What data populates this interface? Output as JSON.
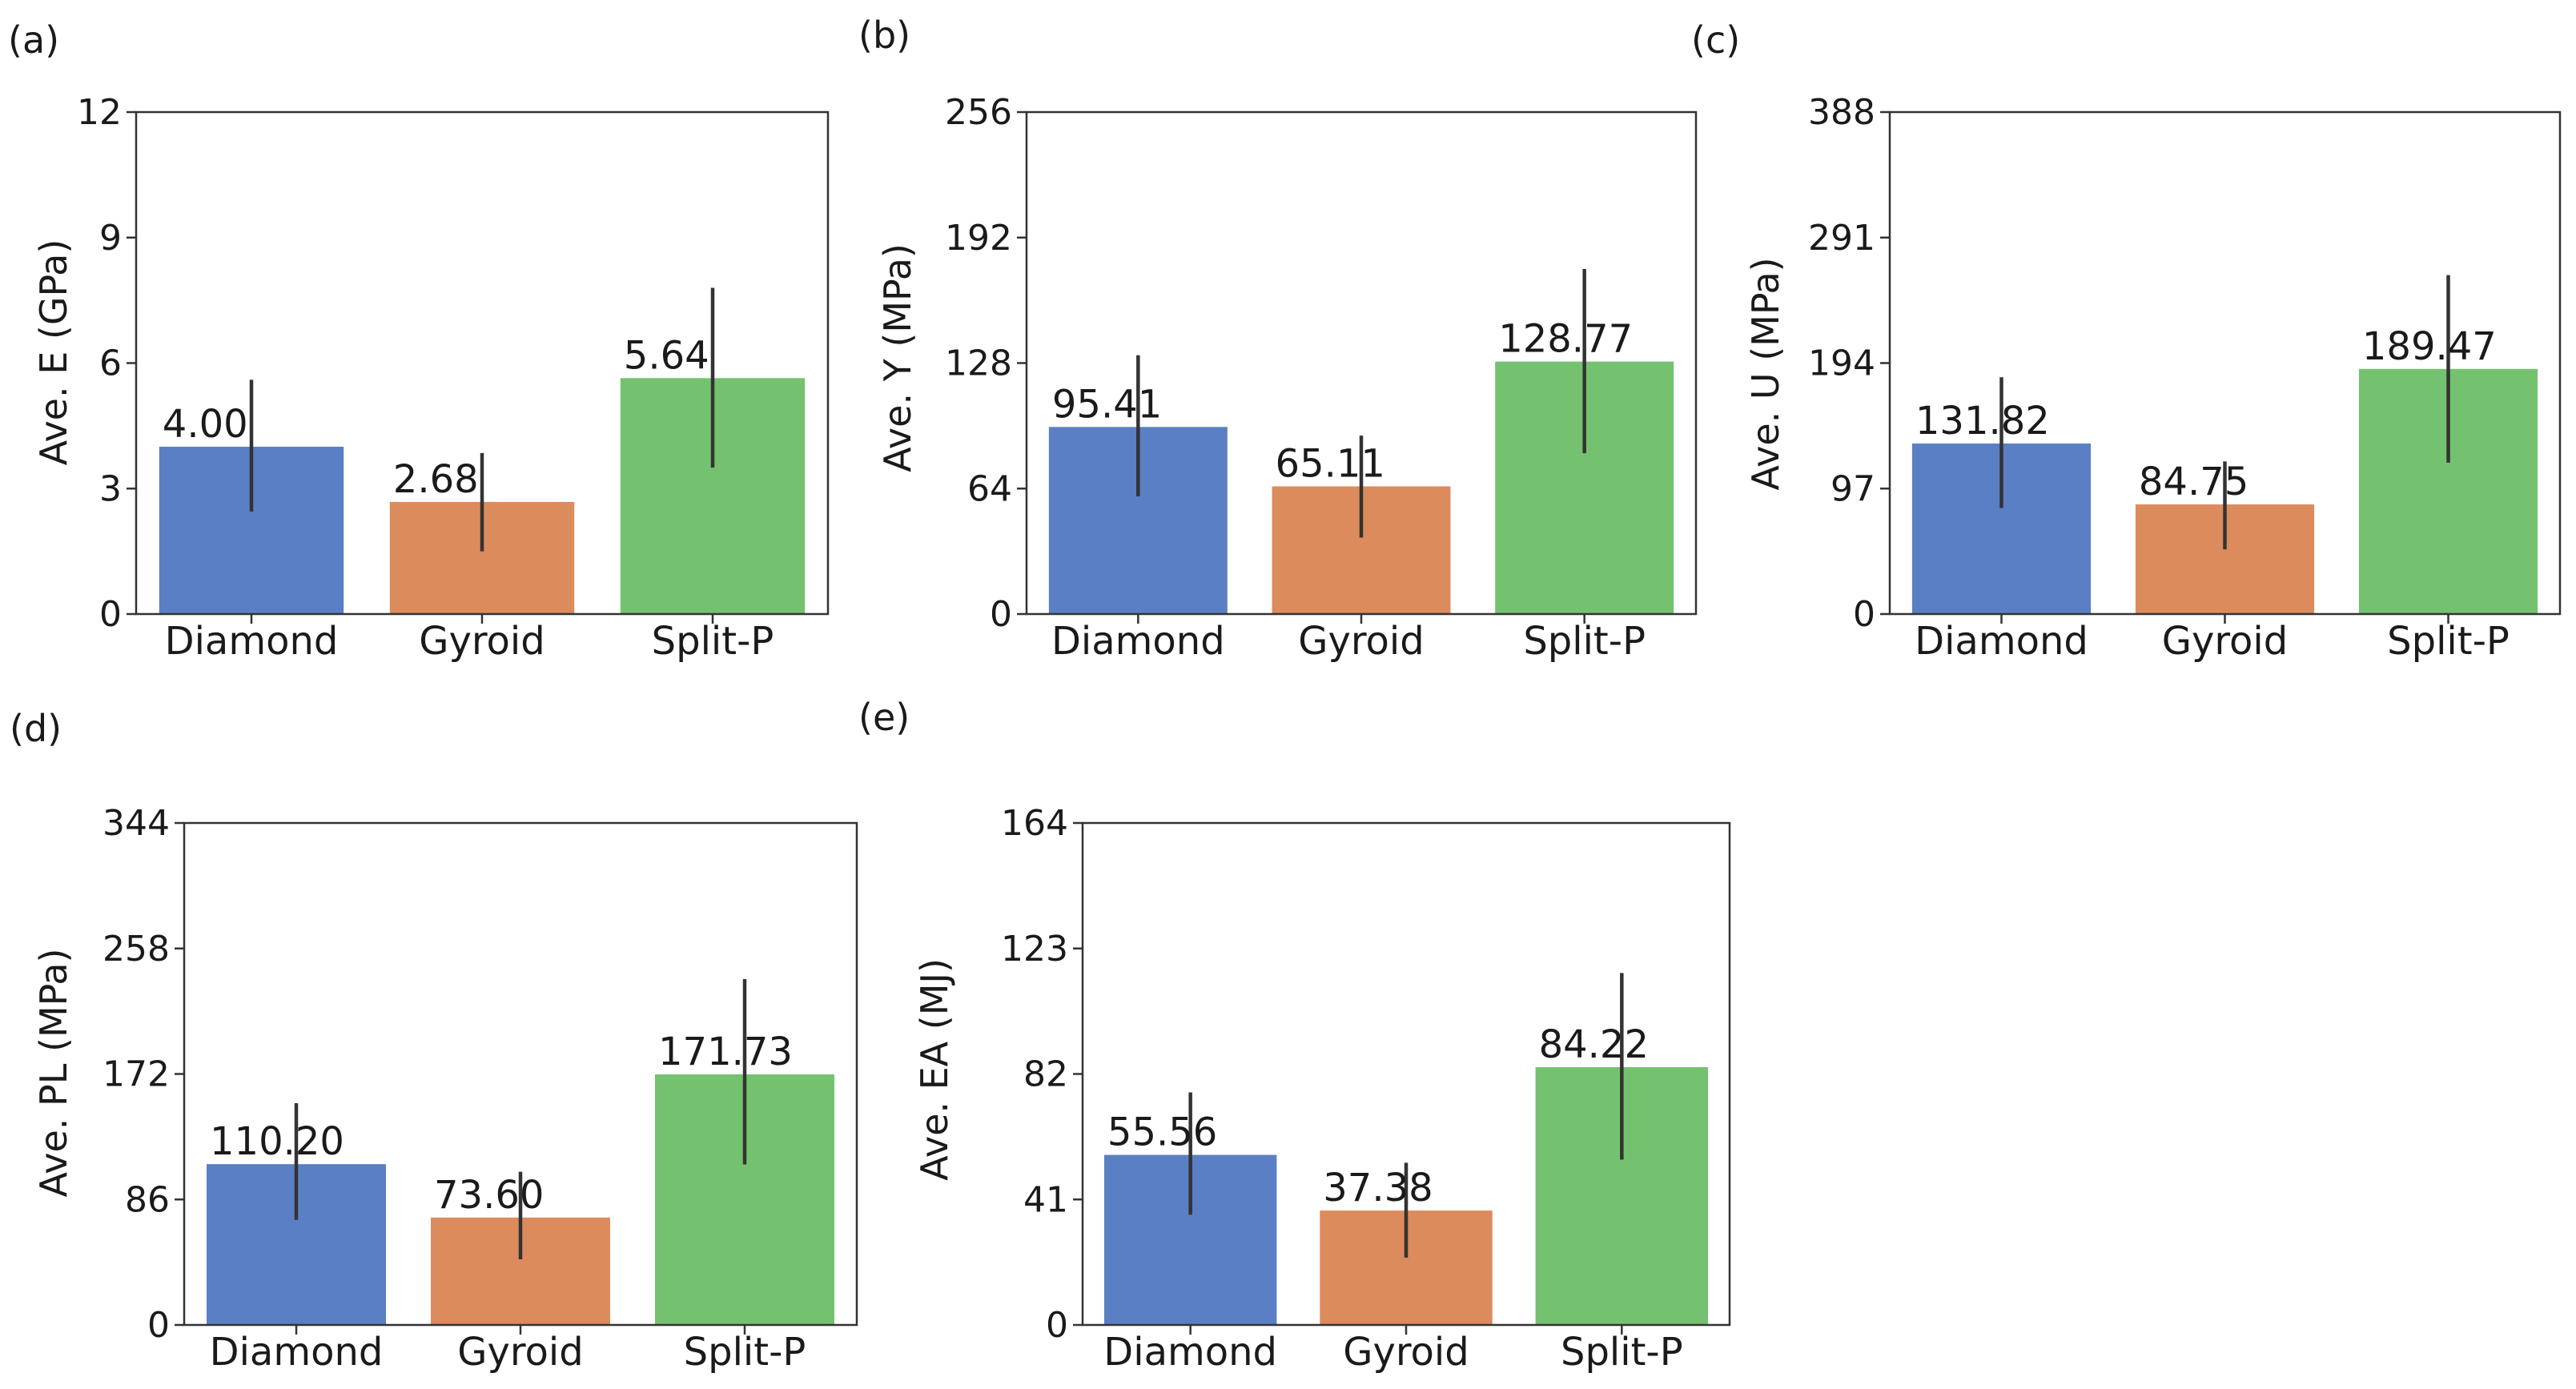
{
  "colors": {
    "Diamond": "#5b7fc4",
    "Gyroid": "#dc8b5d",
    "Split-P": "#74c26f",
    "axis": "#333333",
    "errorbar": "#333333"
  },
  "chart_data": [
    {
      "panel": "(a)",
      "type": "bar",
      "categories": [
        "Diamond",
        "Gyroid",
        "Split-P"
      ],
      "values": [
        4.0,
        2.68,
        5.64
      ],
      "value_labels": [
        "4.00",
        "2.68",
        "5.64"
      ],
      "error_low": [
        2.45,
        1.5,
        3.5
      ],
      "error_high": [
        5.6,
        3.85,
        7.8
      ],
      "ylabel": "Ave. E (GPa)",
      "ylim": [
        0,
        12
      ],
      "yticks": [
        0,
        3,
        6,
        9,
        12
      ],
      "ytick_labels": [
        "0",
        "3",
        "6",
        "9",
        "12"
      ],
      "grid": false,
      "legend": "none"
    },
    {
      "panel": "(b)",
      "type": "bar",
      "categories": [
        "Diamond",
        "Gyroid",
        "Split-P"
      ],
      "values": [
        95.41,
        65.11,
        128.77
      ],
      "value_labels": [
        "95.41",
        "65.11",
        "128.77"
      ],
      "error_low": [
        60,
        39,
        82
      ],
      "error_high": [
        132,
        91,
        176
      ],
      "ylabel": "Ave. Y (MPa)",
      "ylim": [
        0,
        256
      ],
      "yticks": [
        0,
        64,
        128,
        192,
        256
      ],
      "ytick_labels": [
        "0",
        "64",
        "128",
        "192",
        "256"
      ],
      "grid": false,
      "legend": "none"
    },
    {
      "panel": "(c)",
      "type": "bar",
      "categories": [
        "Diamond",
        "Gyroid",
        "Split-P"
      ],
      "values": [
        131.82,
        84.75,
        189.47
      ],
      "value_labels": [
        "131.82",
        "84.75",
        "189.47"
      ],
      "error_low": [
        82,
        50,
        117
      ],
      "error_high": [
        183,
        118,
        262
      ],
      "ylabel": "Ave. U (MPa)",
      "ylim": [
        0,
        388
      ],
      "yticks": [
        0,
        97,
        194,
        291,
        388
      ],
      "ytick_labels": [
        "0",
        "97",
        "194",
        "291",
        "388"
      ],
      "grid": false,
      "legend": "none"
    },
    {
      "panel": "(d)",
      "type": "bar",
      "categories": [
        "Diamond",
        "Gyroid",
        "Split-P"
      ],
      "values": [
        110.2,
        73.6,
        171.73
      ],
      "value_labels": [
        "110.20",
        "73.60",
        "171.73"
      ],
      "error_low": [
        72,
        45,
        110
      ],
      "error_high": [
        152,
        105,
        237
      ],
      "ylabel": "Ave. PL (MPa)",
      "ylim": [
        0,
        344
      ],
      "yticks": [
        0,
        86,
        172,
        258,
        344
      ],
      "ytick_labels": [
        "0",
        "86",
        "172",
        "258",
        "344"
      ],
      "grid": false,
      "legend": "none"
    },
    {
      "panel": "(e)",
      "type": "bar",
      "categories": [
        "Diamond",
        "Gyroid",
        "Split-P"
      ],
      "values": [
        55.56,
        37.38,
        84.22
      ],
      "value_labels": [
        "55.56",
        "37.38",
        "84.22"
      ],
      "error_low": [
        36,
        22,
        54
      ],
      "error_high": [
        76,
        53,
        115
      ],
      "ylabel": "Ave. EA (MJ)",
      "ylim": [
        0,
        164
      ],
      "yticks": [
        0,
        41,
        82,
        123,
        164
      ],
      "ytick_labels": [
        "0",
        "41",
        "82",
        "123",
        "164"
      ],
      "grid": false,
      "legend": "none"
    }
  ]
}
